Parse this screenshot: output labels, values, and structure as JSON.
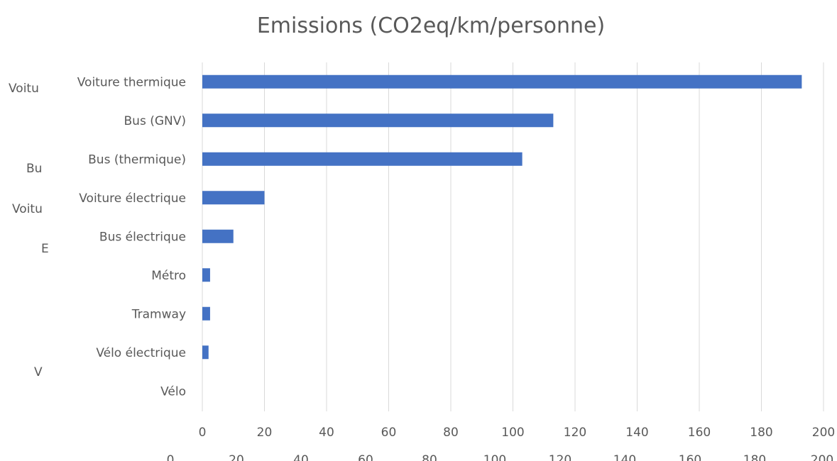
{
  "chart_data": {
    "type": "bar",
    "orientation": "horizontal",
    "title": "Emissions (CO2eq/km/personne)",
    "xlabel": "",
    "ylabel": "",
    "categories": [
      "Voiture thermique",
      "Bus (GNV)",
      "Bus (thermique)",
      "Voiture électrique",
      "Bus électrique",
      "Métro",
      "Tramway",
      "Vélo électrique",
      "Vélo"
    ],
    "values": [
      193,
      113,
      103,
      20,
      10,
      2.5,
      2.5,
      2,
      0
    ],
    "xlim": [
      0,
      200
    ],
    "x_ticks": [
      "0",
      "20",
      "40",
      "60",
      "80",
      "100",
      "120",
      "140",
      "160",
      "180",
      "200"
    ],
    "grid": true,
    "bar_color": "#4472c4",
    "grid_color": "#d9d9d9",
    "text_color": "#595959",
    "legend": "none"
  },
  "background_fragments": {
    "left_labels": [
      "Voitu",
      "Bu",
      "Voitu",
      "E",
      "V"
    ],
    "bottom_ticks": [
      "0",
      "20",
      "40",
      "60",
      "80",
      "100",
      "120",
      "140",
      "160",
      "180",
      "200"
    ]
  }
}
